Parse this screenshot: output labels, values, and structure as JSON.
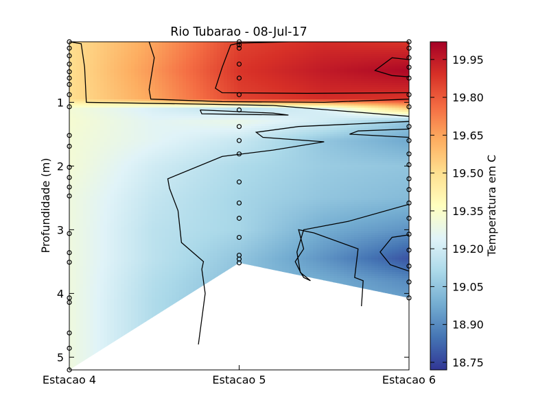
{
  "chart_data": {
    "type": "heatmap",
    "title": "Rio Tubarao - 08-Jul-17",
    "xlabel": "",
    "ylabel": "Profundidade (m)",
    "x_categories": [
      "Estacao 4",
      "Estacao 5",
      "Estacao 6"
    ],
    "x_positions": [
      0,
      1,
      2
    ],
    "xlim": [
      0,
      2
    ],
    "ylim": [
      5.2,
      0.05
    ],
    "y_inverted": true,
    "yticks": [
      1,
      2,
      3,
      4,
      5
    ],
    "colorbar": {
      "label": "Temperatura em C",
      "colormap": "RdYlBu_r",
      "range": [
        18.72,
        20.02
      ],
      "ticks": [
        "19.95",
        "19.80",
        "19.65",
        "19.50",
        "19.35",
        "19.20",
        "19.05",
        "18.90",
        "18.75"
      ],
      "tick_values": [
        19.95,
        19.8,
        19.65,
        19.5,
        19.35,
        19.2,
        19.05,
        18.9,
        18.75
      ]
    },
    "stations": [
      {
        "name": "Estacao 4",
        "x": 0,
        "max_depth": 5.2,
        "sample_depths": [
          0.05,
          0.15,
          0.27,
          0.4,
          0.52,
          0.62,
          0.72,
          0.88,
          1.07,
          1.52,
          1.69,
          2.02,
          2.18,
          2.33,
          2.47,
          3.06,
          3.36,
          3.51,
          4.07,
          4.14,
          4.62,
          4.86,
          5.2
        ]
      },
      {
        "name": "Estacao 5",
        "x": 1,
        "max_depth": 3.52,
        "sample_depths": [
          0.05,
          0.1,
          0.15,
          0.4,
          0.62,
          0.88,
          1.12,
          1.38,
          1.6,
          1.81,
          2.25,
          2.58,
          2.82,
          3.12,
          3.4,
          3.46,
          3.52
        ]
      },
      {
        "name": "Estacao 6",
        "x": 2,
        "max_depth": 4.07,
        "sample_depths": [
          0.05,
          0.15,
          0.3,
          0.45,
          0.62,
          0.88,
          1.07,
          1.38,
          1.6,
          1.81,
          1.98,
          2.2,
          2.37,
          2.58,
          2.82,
          3.07,
          3.32,
          3.57,
          3.82,
          4.07
        ]
      }
    ],
    "temperature_field": {
      "depth_levels": [
        0.05,
        0.5,
        0.95,
        1.1,
        1.3,
        1.6,
        2.0,
        2.5,
        3.0,
        3.45,
        3.8,
        4.1,
        4.5,
        5.2
      ],
      "station_x": [
        0,
        0.5,
        1,
        1.5,
        2
      ],
      "values": [
        [
          19.5,
          19.65,
          19.85,
          19.9,
          19.88
        ],
        [
          19.5,
          19.68,
          19.88,
          19.95,
          20.0
        ],
        [
          19.5,
          19.65,
          19.85,
          19.9,
          19.88
        ],
        [
          19.32,
          19.22,
          19.15,
          19.22,
          19.55
        ],
        [
          19.33,
          19.25,
          19.28,
          19.2,
          19.05
        ],
        [
          19.32,
          19.25,
          19.18,
          19.05,
          18.97
        ],
        [
          19.32,
          19.2,
          19.12,
          19.07,
          19.05
        ],
        [
          19.3,
          19.17,
          19.1,
          19.05,
          19.02
        ],
        [
          19.3,
          19.15,
          19.1,
          18.98,
          18.92
        ],
        [
          19.3,
          19.15,
          19.05,
          18.92,
          18.78
        ],
        [
          19.3,
          19.13,
          19.03,
          18.98,
          18.9
        ],
        [
          19.3,
          19.12,
          19.02,
          19.0,
          18.95
        ],
        [
          19.3,
          19.12,
          19.05,
          19.0,
          18.95
        ],
        [
          19.3,
          19.12,
          19.05,
          19.0,
          18.95
        ]
      ]
    },
    "contours": [
      {
        "level": 19.5,
        "points": [
          [
            0.0,
            0.05
          ],
          [
            0.07,
            0.08
          ],
          [
            0.09,
            0.45
          ],
          [
            0.1,
            1.0
          ],
          [
            0.8,
            1.03
          ],
          [
            1.2,
            1.05
          ],
          [
            2.0,
            1.22
          ]
        ]
      },
      {
        "level": 19.8,
        "points": [
          [
            0.47,
            0.05
          ],
          [
            0.5,
            0.3
          ],
          [
            0.47,
            0.8
          ],
          [
            0.48,
            0.95
          ],
          [
            0.9,
            0.99
          ],
          [
            1.5,
            1.0
          ],
          [
            2.0,
            0.95
          ]
        ]
      },
      {
        "level": 19.85,
        "points": [
          [
            2.0,
            0.05
          ],
          [
            1.3,
            0.05
          ],
          [
            1.0,
            0.07
          ],
          [
            0.95,
            0.1
          ],
          [
            0.9,
            0.45
          ],
          [
            0.86,
            0.78
          ],
          [
            0.9,
            0.85
          ],
          [
            1.4,
            0.86
          ],
          [
            2.0,
            0.85
          ]
        ]
      },
      {
        "level": 19.95,
        "points": [
          [
            2.0,
            0.33
          ],
          [
            1.9,
            0.3
          ],
          [
            1.8,
            0.5
          ],
          [
            1.9,
            0.58
          ],
          [
            2.0,
            0.6
          ]
        ]
      },
      {
        "level": 19.2,
        "points": [
          [
            0.76,
            4.8
          ],
          [
            0.8,
            4.0
          ],
          [
            0.78,
            3.62
          ],
          [
            0.79,
            3.5
          ],
          [
            0.66,
            3.2
          ],
          [
            0.64,
            2.7
          ],
          [
            0.59,
            2.35
          ],
          [
            0.58,
            2.2
          ],
          [
            0.9,
            1.85
          ],
          [
            1.2,
            1.75
          ],
          [
            1.5,
            1.62
          ],
          [
            1.14,
            1.55
          ],
          [
            1.1,
            1.47
          ],
          [
            1.35,
            1.38
          ],
          [
            2.0,
            1.3
          ]
        ]
      },
      {
        "level": 19.2,
        "points": [
          [
            0.77,
            1.12
          ],
          [
            1.2,
            1.17
          ],
          [
            1.29,
            1.2
          ],
          [
            0.78,
            1.18
          ],
          [
            0.77,
            1.12
          ]
        ]
      },
      {
        "level": 19.05,
        "points": [
          [
            1.72,
            4.2
          ],
          [
            1.73,
            3.8
          ],
          [
            1.68,
            3.75
          ],
          [
            1.7,
            3.3
          ],
          [
            1.44,
            3.05
          ],
          [
            1.35,
            3.0
          ],
          [
            1.38,
            3.3
          ],
          [
            1.33,
            3.5
          ],
          [
            1.36,
            3.66
          ],
          [
            1.38,
            3.75
          ],
          [
            1.42,
            3.8
          ],
          [
            1.36,
            3.67
          ],
          [
            1.34,
            3.35
          ],
          [
            1.38,
            3.0
          ],
          [
            1.64,
            2.87
          ],
          [
            2.0,
            2.6
          ]
        ]
      },
      {
        "level": 19.05,
        "points": [
          [
            2.0,
            1.42
          ],
          [
            1.7,
            1.45
          ],
          [
            1.65,
            1.5
          ],
          [
            2.0,
            1.55
          ]
        ]
      },
      {
        "level": 18.9,
        "points": [
          [
            2.0,
            3.08
          ],
          [
            1.9,
            3.12
          ],
          [
            1.83,
            3.35
          ],
          [
            1.89,
            3.55
          ],
          [
            2.0,
            3.65
          ]
        ]
      }
    ]
  }
}
